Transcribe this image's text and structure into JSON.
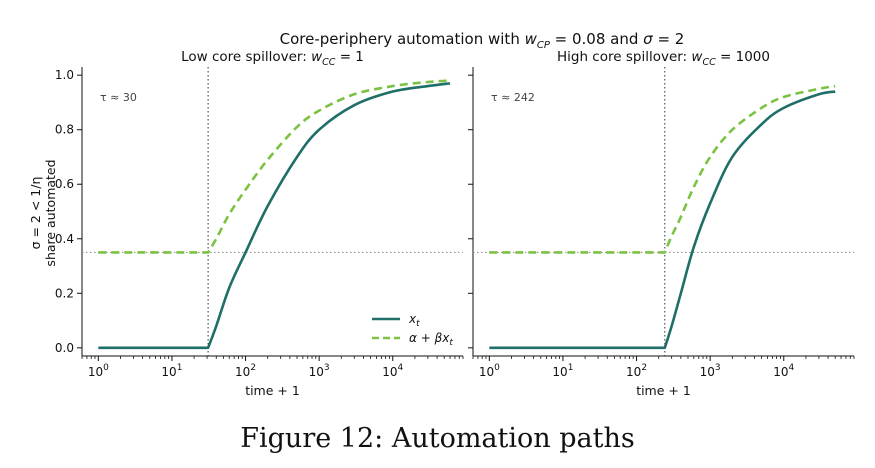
{
  "figure": {
    "suptitle": "Core-periphery automation with w_CP = 0.08 and σ = 2",
    "caption": "Figure 12: Automation paths",
    "ylabel_line1": "σ = 2 < 1/η",
    "ylabel_line2": "share automated"
  },
  "colors": {
    "x_t": "#1f6f68",
    "alpha_beta_x": "#7cc242",
    "reference": "#888888"
  },
  "chart_data": [
    {
      "type": "line",
      "title": "Low core spillover: w_CC = 1",
      "xlabel": "time + 1",
      "ylabel": "share automated",
      "xscale": "log",
      "xlim": [
        0.6,
        90000
      ],
      "ylim": [
        -0.03,
        1.03
      ],
      "xticks": [
        "10^0",
        "10^1",
        "10^2",
        "10^3",
        "10^4"
      ],
      "yticks": [
        "0.0",
        "0.2",
        "0.4",
        "0.6",
        "0.8",
        "1.0"
      ],
      "annotation": "τ ≈ 30",
      "vline_x": 31,
      "hline_y": 0.35,
      "legend": {
        "position": "lower right",
        "entries": [
          "x_t",
          "α + βx_t"
        ]
      },
      "series": [
        {
          "name": "x_t",
          "style": "solid",
          "x": [
            1,
            31,
            40,
            60,
            100,
            200,
            500,
            1000,
            3000,
            10000,
            30000,
            60000
          ],
          "y": [
            0,
            0,
            0.08,
            0.22,
            0.35,
            0.52,
            0.7,
            0.8,
            0.89,
            0.94,
            0.96,
            0.97
          ]
        },
        {
          "name": "α + βx_t",
          "style": "dashed",
          "x": [
            1,
            31,
            40,
            60,
            100,
            200,
            500,
            1000,
            3000,
            10000,
            30000,
            60000
          ],
          "y": [
            0.35,
            0.35,
            0.4,
            0.49,
            0.58,
            0.69,
            0.81,
            0.87,
            0.93,
            0.96,
            0.975,
            0.98
          ]
        }
      ]
    },
    {
      "type": "line",
      "title": "High core spillover: w_CC = 1000",
      "xlabel": "time + 1",
      "ylabel": "",
      "xscale": "log",
      "xlim": [
        0.6,
        90000
      ],
      "ylim": [
        -0.03,
        1.03
      ],
      "xticks": [
        "10^0",
        "10^1",
        "10^2",
        "10^3",
        "10^4"
      ],
      "yticks": [],
      "annotation": "τ ≈ 242",
      "vline_x": 242,
      "hline_y": 0.35,
      "legend": null,
      "series": [
        {
          "name": "x_t",
          "style": "solid",
          "x": [
            1,
            242,
            300,
            400,
            600,
            1000,
            2000,
            5000,
            10000,
            30000,
            50000
          ],
          "y": [
            0,
            0,
            0.08,
            0.2,
            0.37,
            0.53,
            0.7,
            0.82,
            0.88,
            0.93,
            0.94
          ]
        },
        {
          "name": "α + βx_t",
          "style": "dashed",
          "x": [
            1,
            242,
            300,
            400,
            600,
            1000,
            2000,
            5000,
            10000,
            30000,
            50000
          ],
          "y": [
            0.35,
            0.35,
            0.41,
            0.48,
            0.59,
            0.7,
            0.8,
            0.88,
            0.92,
            0.95,
            0.96
          ]
        }
      ]
    }
  ]
}
